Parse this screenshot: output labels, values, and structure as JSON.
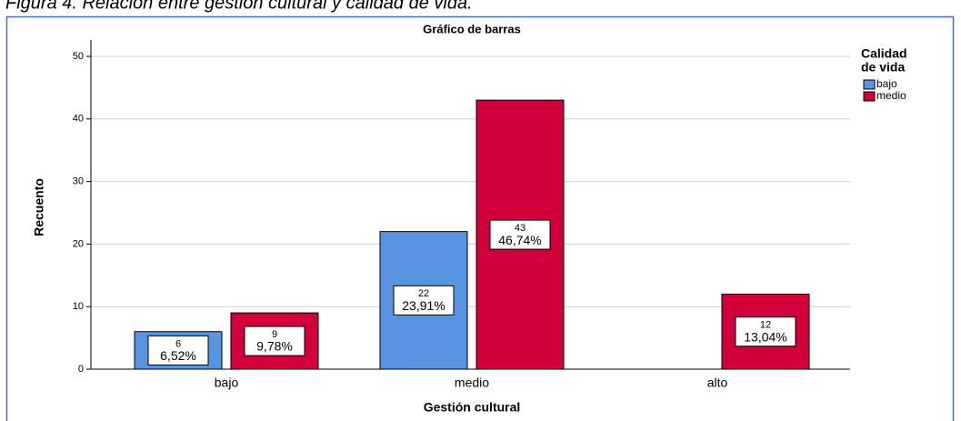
{
  "caption": "Figura 4. Relación entre gestión cultural y calidad de vida.",
  "chart_data": {
    "type": "bar",
    "title": "Gráfico de barras",
    "x_label": "Gestión cultural",
    "y_label": "Recuento",
    "legend_title": [
      "Calidad",
      "de vida"
    ],
    "legend": "right",
    "categories": [
      "bajo",
      "medio",
      "alto"
    ],
    "series": [
      {
        "name": "bajo",
        "color": "#5894e2",
        "values": [
          6,
          22,
          null
        ],
        "percentages": [
          6.52,
          23.91,
          null
        ],
        "percentage_labels": [
          "6,52%",
          "23,91%",
          null
        ]
      },
      {
        "name": "medio",
        "color": "#d1003a",
        "values": [
          9,
          43,
          12
        ],
        "percentages": [
          9.78,
          46.74,
          13.04
        ],
        "percentage_labels": [
          "9,78%",
          "46,74%",
          "13,04%"
        ]
      }
    ],
    "ylim": [
      0,
      50
    ],
    "yticks": [
      0,
      10,
      20,
      30,
      40,
      50
    ],
    "grid": true
  }
}
